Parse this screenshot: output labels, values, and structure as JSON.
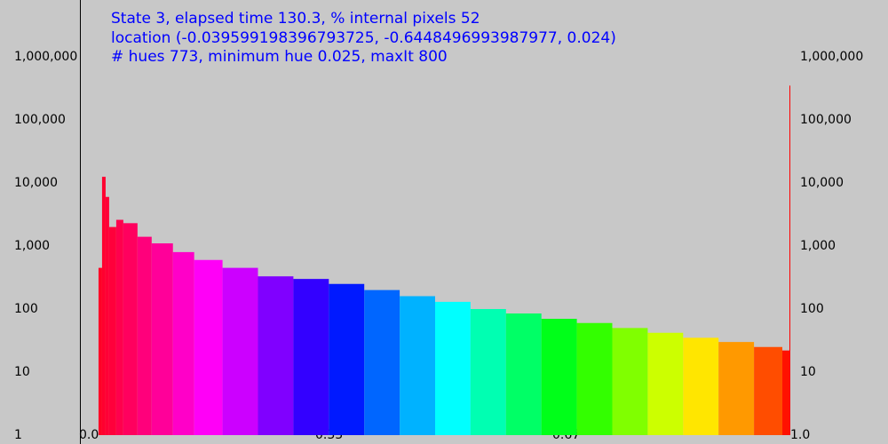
{
  "header": {
    "line1": "State 3, elapsed time 130.3, % internal pixels 52",
    "line2": "location (-0.039599198396793725, -0.6448496993987977, 0.024)",
    "line3": "# hues 773, minimum hue 0.025, maxIt 800"
  },
  "colors": {
    "background": "#c8c8c8",
    "header_text": "#0000ff",
    "axis": "#000000"
  },
  "chart_data": {
    "type": "bar",
    "scale_y": "log",
    "ylim": [
      1,
      1000000
    ],
    "xlim": [
      0.0,
      1.0
    ],
    "grid": false,
    "legend": "none",
    "y_tick_labels": [
      "1",
      "10",
      "100",
      "1,000",
      "10,000",
      "100,000",
      "1,000,000"
    ],
    "y_tick_values": [
      1,
      10,
      100,
      1000,
      10000,
      100000,
      1000000
    ],
    "x_tick_labels": [
      "0.0",
      "0.33",
      "0.67",
      "1.0"
    ],
    "x_tick_values": [
      0.0,
      0.33,
      0.67,
      1.0
    ],
    "hue_color_mapping": "bar color = hue of its x position (red → orange → yellow → green → cyan → blue → magenta → red)",
    "series": [
      {
        "x": [
          0.025,
          0.03,
          0.035,
          0.04,
          0.05,
          0.06,
          0.08,
          0.1,
          0.13,
          0.16,
          0.2,
          0.25,
          0.3,
          0.35,
          0.4,
          0.45,
          0.5,
          0.55,
          0.6,
          0.65,
          0.7,
          0.75,
          0.8,
          0.85,
          0.9,
          0.95,
          0.99,
          1.0
        ],
        "values": [
          450,
          12500,
          6000,
          2000,
          2600,
          2300,
          1400,
          1100,
          800,
          600,
          450,
          330,
          300,
          250,
          200,
          160,
          130,
          100,
          85,
          70,
          60,
          50,
          42,
          35,
          30,
          25,
          22,
          350000
        ]
      }
    ]
  }
}
